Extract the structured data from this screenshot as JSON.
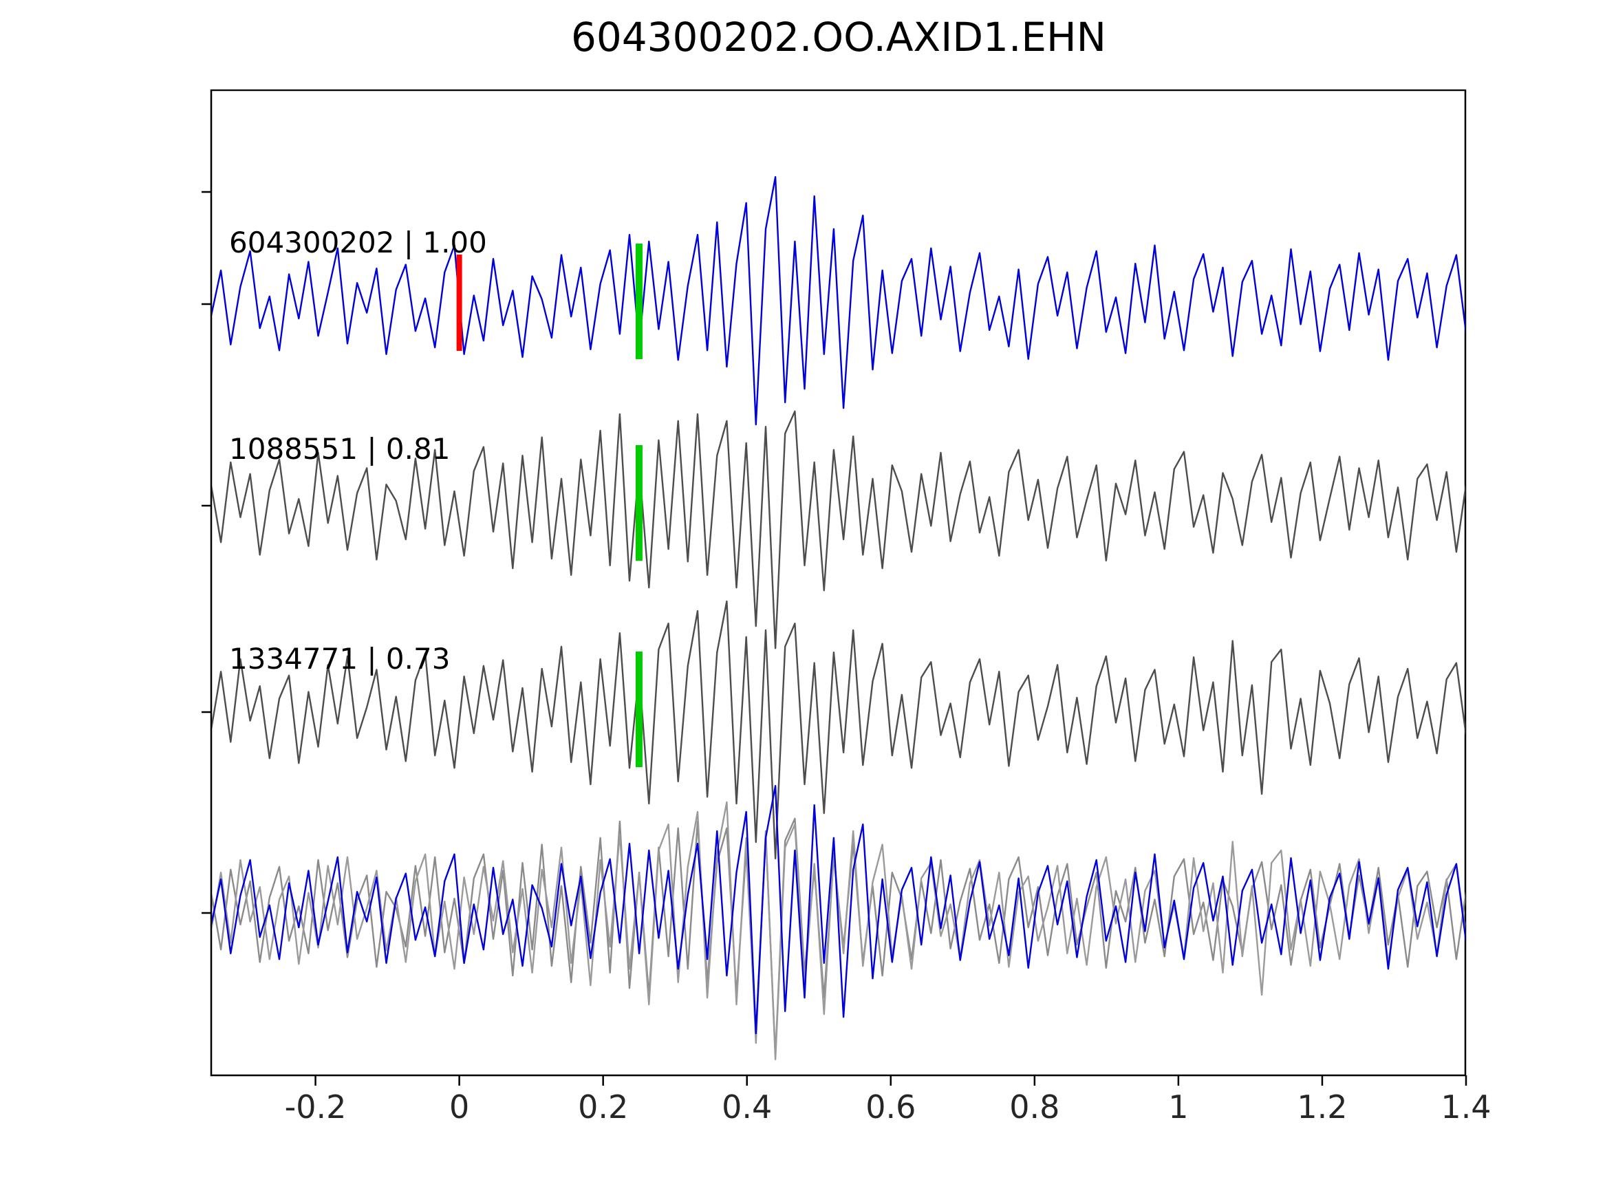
{
  "title": "604300202.OO.AXID1.EHN",
  "chart_data": {
    "type": "line",
    "title": "604300202.OO.AXID1.EHN",
    "xlabel": "",
    "ylabel": "",
    "grid": false,
    "legend": "none",
    "x_range": [
      -0.345,
      1.4
    ],
    "x_ticks_labels": [
      "-0.2",
      "0",
      "0.2",
      "0.4",
      "0.6",
      "0.8",
      "1",
      "1.2",
      "1.4"
    ],
    "x_ticks_values": [
      -0.2,
      0,
      0.2,
      0.4,
      0.6,
      0.8,
      1,
      1.2,
      1.4
    ],
    "colors": {
      "template_trace": "#0000dd",
      "detection_trace": "#4d4d4d",
      "overlay_gray_1": "#8a8a8a",
      "overlay_gray_2": "#9a9a9a",
      "origin_marker": "#ff0000",
      "pick_marker": "#00cc00",
      "axis": "#000000",
      "tick_text": "#262626"
    },
    "traces": [
      {
        "id": "604300202",
        "label": "604300202 | 1.00",
        "correlation": "1.00",
        "row": 0,
        "color": "#0000dd",
        "picks": [
          {
            "x": 0.0,
            "color": "#ff0000"
          },
          {
            "x": 0.25,
            "color": "#00cc00"
          }
        ],
        "values": [
          -0.12,
          0.35,
          -0.42,
          0.18,
          0.55,
          -0.25,
          0.08,
          -0.48,
          0.31,
          -0.15,
          0.44,
          -0.33,
          0.12,
          0.58,
          -0.41,
          0.22,
          -0.09,
          0.37,
          -0.52,
          0.15,
          0.41,
          -0.28,
          0.06,
          -0.45,
          0.33,
          0.61,
          -0.52,
          0.09,
          -0.38,
          0.47,
          -0.22,
          0.14,
          -0.55,
          0.29,
          0.05,
          -0.35,
          0.51,
          -0.13,
          0.38,
          -0.47,
          0.21,
          0.56,
          -0.31,
          0.72,
          -0.42,
          0.65,
          -0.26,
          0.44,
          -0.58,
          0.19,
          0.72,
          -0.48,
          0.85,
          -0.65,
          0.42,
          1.05,
          -1.25,
          0.78,
          1.32,
          -1.02,
          0.65,
          -0.88,
          1.12,
          -0.52,
          0.78,
          -1.08,
          0.45,
          0.92,
          -0.68,
          0.35,
          -0.51,
          0.24,
          0.47,
          -0.33,
          0.58,
          -0.16,
          0.39,
          -0.49,
          0.12,
          0.53,
          -0.27,
          0.08,
          -0.44,
          0.36,
          -0.57,
          0.21,
          0.49,
          -0.12,
          0.33,
          -0.46,
          0.17,
          0.55,
          -0.29,
          0.07,
          -0.51,
          0.42,
          -0.19,
          0.61,
          -0.36,
          0.13,
          -0.48,
          0.26,
          0.52,
          -0.08,
          0.38,
          -0.54,
          0.23,
          0.45,
          -0.31,
          0.09,
          -0.43,
          0.57,
          -0.21,
          0.34,
          -0.49,
          0.16,
          0.41,
          -0.27,
          0.53,
          -0.11,
          0.36,
          -0.58,
          0.24,
          0.47,
          -0.14,
          0.32,
          -0.45,
          0.19,
          0.51,
          -0.3
        ]
      },
      {
        "id": "1088551",
        "label": "1088551 | 0.81",
        "correlation": "0.81",
        "row": 1,
        "color": "#4d4d4d",
        "picks": [
          {
            "x": 0.25,
            "color": "#00cc00"
          }
        ],
        "values": [
          0.21,
          -0.38,
          0.45,
          -0.12,
          0.33,
          -0.51,
          0.16,
          0.48,
          -0.29,
          0.07,
          -0.42,
          0.55,
          -0.18,
          0.31,
          -0.46,
          0.13,
          0.39,
          -0.56,
          0.22,
          0.05,
          -0.35,
          0.49,
          -0.24,
          0.58,
          -0.41,
          0.15,
          -0.52,
          0.36,
          0.61,
          -0.27,
          0.44,
          -0.65,
          0.52,
          -0.38,
          0.71,
          -0.55,
          0.28,
          -0.72,
          0.48,
          -0.31,
          0.78,
          -0.62,
          0.95,
          -0.78,
          0.42,
          -0.85,
          0.68,
          -0.45,
          0.88,
          -0.58,
          0.95,
          -0.72,
          0.52,
          0.88,
          -0.85,
          0.65,
          -1.25,
          0.82,
          -1.48,
          0.75,
          0.98,
          -0.62,
          0.45,
          -0.88,
          0.58,
          -0.35,
          0.72,
          -0.51,
          0.28,
          -0.65,
          0.42,
          0.15,
          -0.48,
          0.33,
          -0.21,
          0.55,
          -0.37,
          0.12,
          0.46,
          -0.28,
          0.09,
          -0.52,
          0.35,
          0.58,
          -0.15,
          0.27,
          -0.44,
          0.18,
          0.51,
          -0.33,
          0.06,
          0.42,
          -0.57,
          0.23,
          -0.09,
          0.47,
          -0.31,
          0.14,
          -0.45,
          0.38,
          0.56,
          -0.22,
          0.11,
          -0.49,
          0.34,
          0.07,
          -0.41,
          0.25,
          0.53,
          -0.17,
          0.29,
          -0.54,
          0.13,
          0.45,
          -0.36,
          0.08,
          0.51,
          -0.25,
          0.39,
          -0.12,
          0.47,
          -0.33,
          0.19,
          -0.56,
          0.28,
          0.43,
          -0.15,
          0.35,
          -0.48,
          0.22
        ]
      },
      {
        "id": "1334771",
        "label": "1334771 | 0.73",
        "correlation": "0.73",
        "row": 2,
        "color": "#4d4d4d",
        "picks": [
          {
            "x": 0.25,
            "color": "#00cc00"
          }
        ],
        "values": [
          -0.18,
          0.42,
          -0.31,
          0.55,
          -0.09,
          0.27,
          -0.48,
          0.14,
          0.38,
          -0.53,
          0.21,
          -0.36,
          0.49,
          -0.12,
          0.58,
          -0.27,
          0.05,
          0.44,
          -0.39,
          0.16,
          -0.51,
          0.33,
          0.61,
          -0.45,
          0.12,
          -0.58,
          0.37,
          -0.22,
          0.48,
          -0.08,
          0.54,
          -0.41,
          0.25,
          -0.62,
          0.45,
          -0.15,
          0.68,
          -0.52,
          0.31,
          -0.75,
          0.55,
          -0.35,
          0.82,
          -0.58,
          0.41,
          -0.95,
          0.65,
          0.92,
          -0.72,
          0.48,
          1.05,
          -0.88,
          0.62,
          1.15,
          -0.95,
          0.78,
          -1.35,
          0.85,
          -1.52,
          0.68,
          0.92,
          -0.75,
          0.51,
          -1.05,
          0.62,
          -0.42,
          0.85,
          -0.55,
          0.32,
          0.71,
          -0.45,
          0.18,
          -0.58,
          0.36,
          0.52,
          -0.24,
          0.09,
          -0.47,
          0.31,
          0.55,
          -0.13,
          0.42,
          -0.56,
          0.21,
          0.38,
          -0.29,
          0.06,
          0.49,
          -0.42,
          0.15,
          -0.54,
          0.27,
          0.58,
          -0.11,
          0.35,
          -0.51,
          0.23,
          0.44,
          -0.33,
          0.08,
          -0.46,
          0.57,
          -0.19,
          0.31,
          -0.62,
          0.74,
          -0.45,
          0.28,
          -0.85,
          0.52,
          0.65,
          -0.38,
          0.14,
          -0.55,
          0.43,
          0.09,
          -0.48,
          0.29,
          0.56,
          -0.21,
          0.37,
          -0.52,
          0.16,
          0.45,
          -0.27,
          0.11,
          -0.43,
          0.34,
          0.51,
          -0.24
        ]
      },
      {
        "id": "overlay",
        "label": "",
        "row": 3,
        "overlay_of": [
          "1088551",
          "1334771",
          "604300202"
        ],
        "overlay_colors": [
          "#8a8a8a",
          "#9a9a9a",
          "#0000dd"
        ],
        "picks": []
      }
    ]
  }
}
